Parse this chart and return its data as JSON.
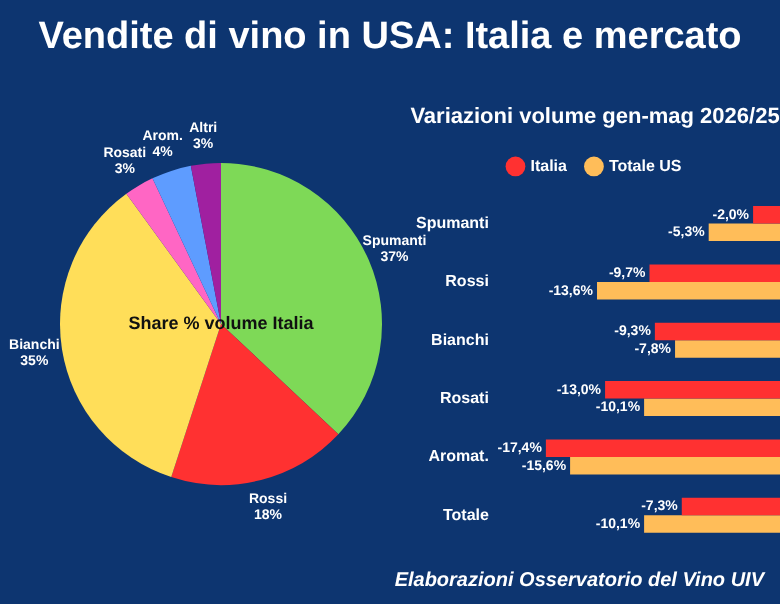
{
  "chart_data": [
    {
      "type": "other",
      "title": "Vendite di vino in USA: Italia e mercato",
      "annotations": [
        "Elaborazioni Osservatorio del Vino UIV"
      ]
    },
    {
      "type": "pie",
      "annotations": [
        "Share % volume Italia"
      ],
      "categories": [
        "Spumanti",
        "Rossi",
        "Bianchi",
        "Rosati",
        "Arom.",
        "Altri"
      ],
      "values": [
        37,
        18,
        35,
        3,
        4,
        3
      ],
      "colors": [
        "#7ed957",
        "#ff3131",
        "#ffde59",
        "#ff66c4",
        "#5e9cff",
        "#a020a0"
      ],
      "value_labels": [
        "37%",
        "18%",
        "35%",
        "3%",
        "4%",
        "3%"
      ],
      "legend": false
    },
    {
      "type": "bar",
      "orientation": "horizontal",
      "title": "Variazioni volume gen-mag 2026/25",
      "legend": "top",
      "categories": [
        "Spumanti",
        "Rossi",
        "Bianchi",
        "Rosati",
        "Aromat.",
        "Totale"
      ],
      "series": [
        {
          "name": "Italia",
          "color": "#ff3131",
          "values": [
            -2.0,
            -9.7,
            -9.3,
            -13.0,
            -17.4,
            -7.3
          ],
          "value_labels": [
            "-2,0%",
            "-9,7%",
            "-9,3%",
            "-13,0%",
            "-17,4%",
            "-7,3%"
          ]
        },
        {
          "name": "Totale US",
          "color": "#ffbd59",
          "values": [
            -5.3,
            -13.6,
            -7.8,
            -10.1,
            -15.6,
            -10.1
          ],
          "value_labels": [
            "-5,3%",
            "-13,6%",
            "-7,8%",
            "-10,1%",
            "-15,6%",
            "-10,1%"
          ]
        }
      ]
    }
  ]
}
